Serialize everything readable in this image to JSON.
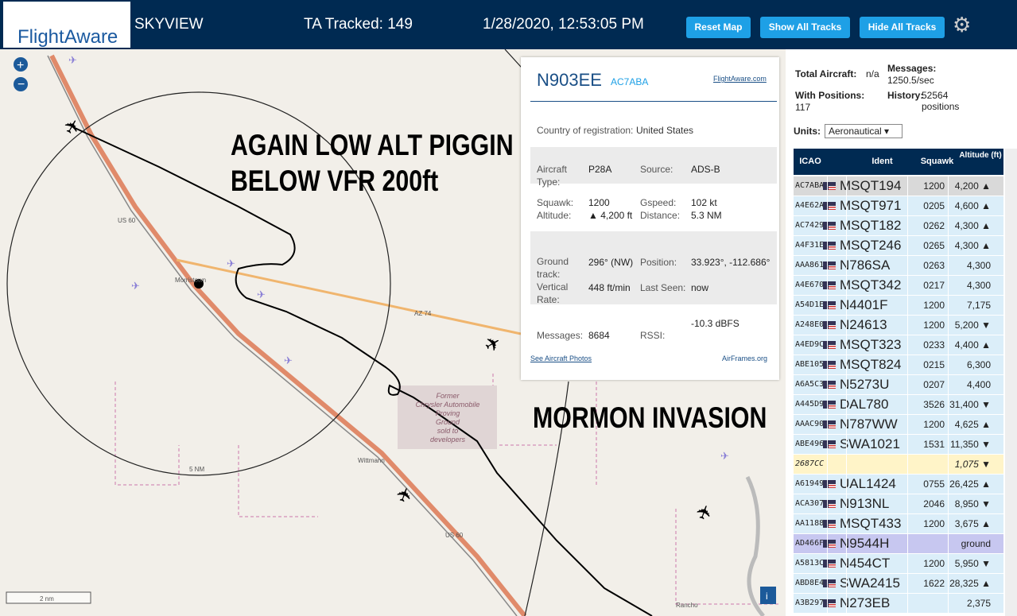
{
  "header": {
    "logo": "FlightAware",
    "app": "SKYVIEW",
    "tracked": "TA Tracked: 149",
    "datetime": "1/28/2020, 12:53:05 PM",
    "buttons": [
      "Reset Map",
      "Show All Tracks",
      "Hide All Tracks"
    ]
  },
  "map": {
    "annotations": [
      "AGAIN LOW ALT PIGGIN",
      "BELOW VFR 200ft",
      "MORMON INVASION"
    ],
    "labels": {
      "us60a": "US 60",
      "us60b": "US 60",
      "town1": "Morristown",
      "az74": "AZ 74",
      "town2": "Wittmann",
      "ring": "5 NM",
      "scale": "2 nm",
      "proving": [
        "Former",
        "Chrysler Automobile",
        "Proving",
        "Ground",
        "sold to",
        "developers"
      ],
      "rancho": "Rancho"
    }
  },
  "info": {
    "reg": "N903EE",
    "icao": "AC7ABA",
    "link": "FlightAware.com",
    "country_label": "Country of registration:",
    "country": "United States",
    "type_label": "Aircraft Type:",
    "type": "P28A",
    "source_label": "Source:",
    "source": "ADS-B",
    "squawk_label": "Squawk:",
    "squawk": "1200",
    "alt_label": "Altitude:",
    "alt": "▲ 4,200 ft",
    "gspeed_label": "Gspeed:",
    "gspeed": "102 kt",
    "dist_label": "Distance:",
    "dist": "5.3 NM",
    "track_label": "Ground track:",
    "track": "296° (NW)",
    "pos_label": "Position:",
    "pos": "33.923°, -112.686°",
    "vrate_label": "Vertical Rate:",
    "vrate": "448 ft/min",
    "seen_label": "Last Seen:",
    "seen": "now",
    "msgs_label": "Messages:",
    "msgs": "8684",
    "rssi_label": "RSSI:",
    "rssi": "-10.3 dBFS",
    "photos": "See Aircraft Photos",
    "airframes": "AirFrames.org"
  },
  "stats": {
    "total_label": "Total Aircraft:",
    "total": "n/a",
    "messages_label": "Messages:",
    "messages": "1250.5/sec",
    "positions_label": "With Positions:",
    "positions": "117",
    "history_label": "History:",
    "history": "52564 positions",
    "units_label": "Units:",
    "units": "Aeronautical"
  },
  "table": {
    "headers": [
      "ICAO",
      "Ident",
      "Squawk",
      "Altitude (ft)"
    ],
    "rows": [
      [
        "AC7ABA",
        "MSQT194",
        "1200",
        "4,200 ▲"
      ],
      [
        "A4E62A",
        "MSQT971",
        "0205",
        "4,600 ▲"
      ],
      [
        "AC7429",
        "MSQT182",
        "0262",
        "4,300 ▲"
      ],
      [
        "A4F31E",
        "MSQT246",
        "0265",
        "4,300 ▲"
      ],
      [
        "AAA861",
        "N786SA",
        "0263",
        "4,300"
      ],
      [
        "A4E670",
        "MSQT342",
        "0217",
        "4,300"
      ],
      [
        "A54D1E",
        "N4401F",
        "1200",
        "7,175"
      ],
      [
        "A248E0",
        "N24613",
        "1200",
        "5,200 ▼"
      ],
      [
        "A4ED9C",
        "MSQT323",
        "0233",
        "4,400 ▲"
      ],
      [
        "ABE105",
        "MSQT824",
        "0215",
        "6,300"
      ],
      [
        "A6A5C3",
        "N5273U",
        "0207",
        "4,400"
      ],
      [
        "A445D9",
        "DAL780",
        "3526",
        "31,400 ▼"
      ],
      [
        "AAAC90",
        "N787WW",
        "1200",
        "4,625 ▲"
      ],
      [
        "ABE496",
        "SWA1021",
        "1531",
        "11,350 ▼"
      ],
      [
        "2687CC",
        null,
        null,
        "1,075 ▼"
      ],
      [
        "A61949",
        "UAL1424",
        "0755",
        "26,425 ▲"
      ],
      [
        "ACA307",
        "N913NL",
        "2046",
        "8,950 ▼"
      ],
      [
        "AA1188",
        "MSQT433",
        "1200",
        "3,675 ▲"
      ],
      [
        "AD466F",
        "N9544H",
        null,
        "ground"
      ],
      [
        "A5813C",
        "N454CT",
        "1200",
        "5,950 ▼"
      ],
      [
        "ABD8E4",
        "SWA2415",
        "1622",
        "28,325 ▲"
      ],
      [
        "A3B297",
        "N273EB",
        null,
        "2,375"
      ]
    ]
  }
}
